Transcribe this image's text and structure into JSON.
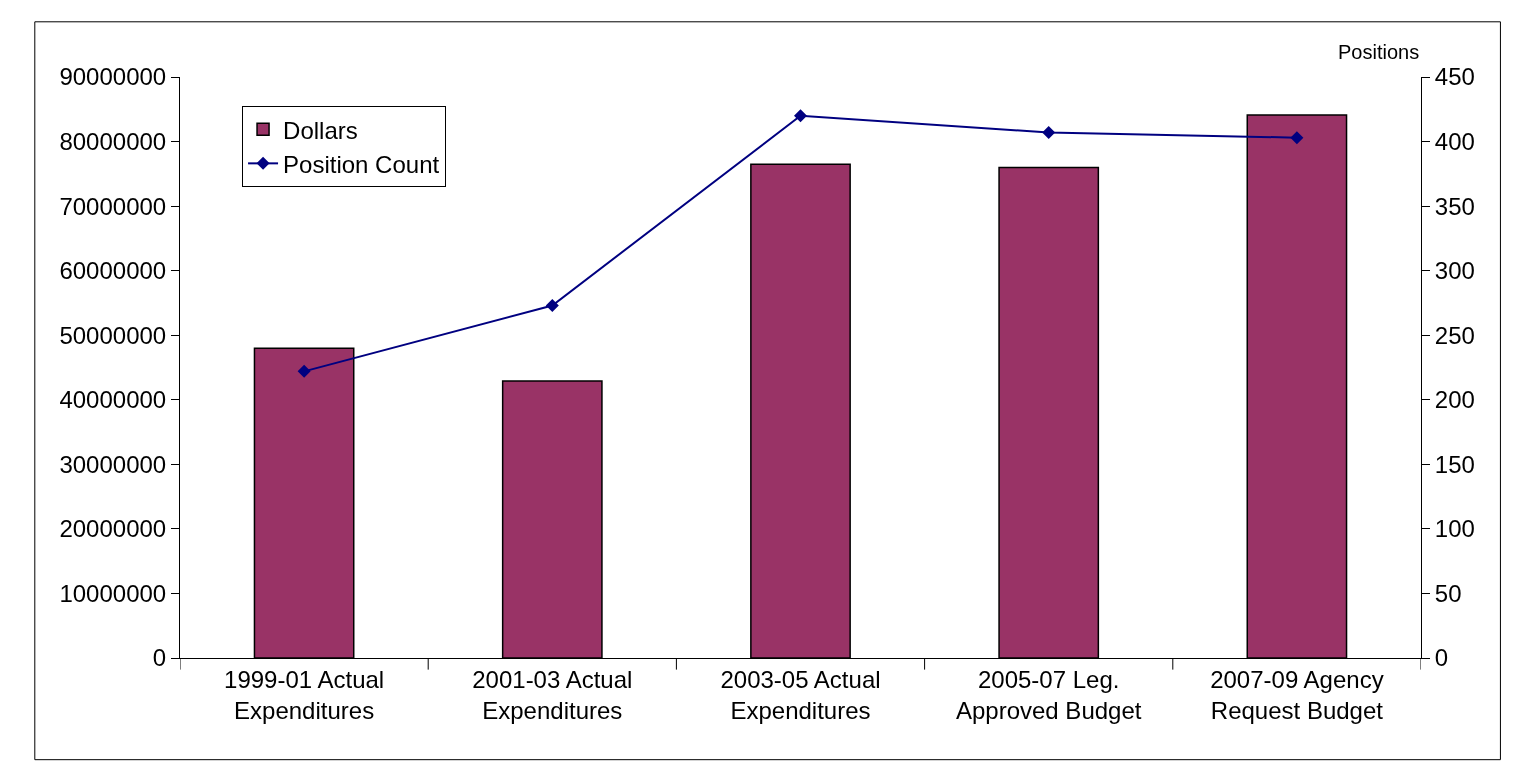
{
  "chart_data": {
    "type": "bar",
    "y2label": "Positions",
    "categories": [
      "1999-01 Actual Expenditures",
      "2001-03 Actual Expenditures",
      "2003-05 Actual Expenditures",
      "2005-07 Leg. Approved Budget",
      "2007-09 Agency Request Budget"
    ],
    "series": [
      {
        "name": "Dollars",
        "color": "#993366",
        "values": [
          48000000,
          42900000,
          76500000,
          76000000,
          84100000
        ]
      },
      {
        "name": "Position Count",
        "type": "line",
        "axis": "y2",
        "color": "#000080",
        "marker": "diamond",
        "values": [
          222,
          273,
          420,
          407,
          403
        ]
      }
    ],
    "ylim": [
      0,
      90000000
    ],
    "yticks": [
      0,
      10000000,
      20000000,
      30000000,
      40000000,
      50000000,
      60000000,
      70000000,
      80000000,
      90000000
    ],
    "y2lim": [
      0,
      450
    ],
    "y2ticks": [
      0,
      50,
      100,
      150,
      200,
      250,
      300,
      350,
      400,
      450
    ],
    "legend": "top left"
  }
}
